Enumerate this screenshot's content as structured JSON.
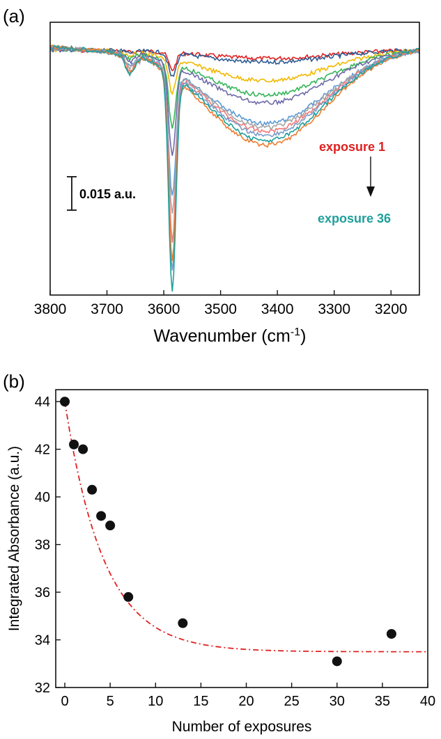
{
  "chart_data": [
    {
      "panel_label": "(a)",
      "type": "line",
      "xlabel": "Wavenumber (cm",
      "xlabel_sup": "-1",
      "xlabel_tail": ")",
      "ylabel": "",
      "xlim": [
        3800,
        3150
      ],
      "ylim": [
        0,
        1
      ],
      "x_ticks": [
        "3800",
        "3700",
        "3600",
        "3500",
        "3400",
        "3300",
        "3200"
      ],
      "x_tick_values": [
        3800,
        3700,
        3600,
        3500,
        3400,
        3300,
        3200
      ],
      "scale_bar": "0.015 a.u.",
      "annotation_start": "exposure 1",
      "annotation_end": "exposure 36",
      "annotation_start_color": "#e02020",
      "annotation_end_color": "#1e9f9a",
      "peak_position": 3585,
      "series": [
        {
          "color": "#e02020",
          "depth": 0.08,
          "broad": 0.04
        },
        {
          "color": "#2c5c94",
          "depth": 0.11,
          "broad": 0.06
        },
        {
          "color": "#f2b800",
          "depth": 0.16,
          "broad": 0.15
        },
        {
          "color": "#35b55a",
          "depth": 0.3,
          "broad": 0.22
        },
        {
          "color": "#6e6aa8",
          "depth": 0.42,
          "broad": 0.26
        },
        {
          "color": "#5b9bd5",
          "depth": 0.58,
          "broad": 0.36
        },
        {
          "color": "#a5a5a5",
          "depth": 0.66,
          "broad": 0.38
        },
        {
          "color": "#f07a7a",
          "depth": 0.78,
          "broad": 0.4
        },
        {
          "color": "#7a9cc9",
          "depth": 0.92,
          "broad": 0.42
        },
        {
          "color": "#ed7d31",
          "depth": 0.86,
          "broad": 0.47
        },
        {
          "color": "#1e9f9a",
          "depth": 1.0,
          "broad": 0.45
        }
      ]
    },
    {
      "panel_label": "(b)",
      "type": "scatter",
      "xlabel": "Number of exposures",
      "ylabel": "Integrated Absorbance (a.u.)",
      "xlim": [
        -1,
        40
      ],
      "ylim": [
        32,
        44.5
      ],
      "x_ticks": [
        "0",
        "5",
        "10",
        "15",
        "20",
        "25",
        "30",
        "35",
        "40"
      ],
      "x_tick_values": [
        0,
        5,
        10,
        15,
        20,
        25,
        30,
        35,
        40
      ],
      "y_ticks": [
        "32",
        "34",
        "36",
        "38",
        "40",
        "42",
        "44"
      ],
      "y_tick_values": [
        32,
        34,
        36,
        38,
        40,
        42,
        44
      ],
      "points": [
        {
          "x": 0,
          "y": 44.0
        },
        {
          "x": 1,
          "y": 42.2
        },
        {
          "x": 2,
          "y": 42.0
        },
        {
          "x": 3,
          "y": 40.3
        },
        {
          "x": 4,
          "y": 39.2
        },
        {
          "x": 5,
          "y": 38.8
        },
        {
          "x": 7,
          "y": 35.8
        },
        {
          "x": 13,
          "y": 34.7
        },
        {
          "x": 30,
          "y": 33.1
        },
        {
          "x": 36,
          "y": 34.25
        }
      ],
      "fit": {
        "form": "exponential decay",
        "y0": 33.5,
        "A": 10.5,
        "tau": 4.3,
        "color": "#e02020"
      }
    }
  ]
}
